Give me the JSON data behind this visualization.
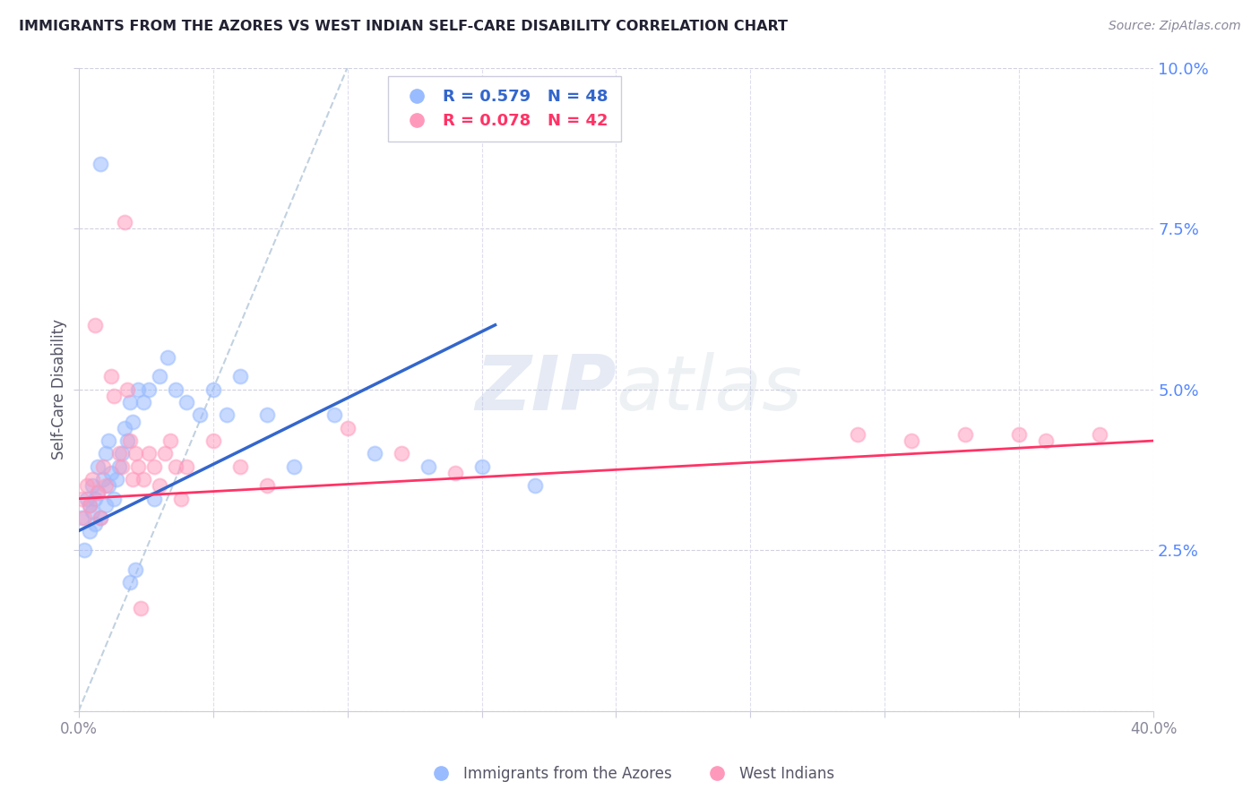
{
  "title": "IMMIGRANTS FROM THE AZORES VS WEST INDIAN SELF-CARE DISABILITY CORRELATION CHART",
  "source": "Source: ZipAtlas.com",
  "ylabel": "Self-Care Disability",
  "legend_label_1": "Immigrants from the Azores",
  "legend_label_2": "West Indians",
  "R1": 0.579,
  "N1": 48,
  "R2": 0.078,
  "N2": 42,
  "xlim": [
    0.0,
    0.4
  ],
  "ylim": [
    0.0,
    0.1
  ],
  "xticks": [
    0.0,
    0.05,
    0.1,
    0.15,
    0.2,
    0.25,
    0.3,
    0.35,
    0.4
  ],
  "yticks": [
    0.0,
    0.025,
    0.05,
    0.075,
    0.1
  ],
  "color_blue": "#99BBFF",
  "color_pink": "#FF99BB",
  "color_blue_line": "#3366CC",
  "color_pink_line": "#FF3366",
  "color_diag": "#BBCCDD",
  "watermark_zip": "ZIP",
  "watermark_atlas": "atlas",
  "blue_points_x": [
    0.001,
    0.002,
    0.003,
    0.004,
    0.004,
    0.005,
    0.005,
    0.006,
    0.006,
    0.007,
    0.007,
    0.008,
    0.009,
    0.01,
    0.01,
    0.011,
    0.011,
    0.012,
    0.013,
    0.014,
    0.015,
    0.016,
    0.017,
    0.018,
    0.019,
    0.02,
    0.022,
    0.024,
    0.026,
    0.03,
    0.033,
    0.036,
    0.04,
    0.045,
    0.05,
    0.055,
    0.06,
    0.07,
    0.08,
    0.095,
    0.11,
    0.13,
    0.15,
    0.17,
    0.019,
    0.021,
    0.028,
    0.008
  ],
  "blue_points_y": [
    0.03,
    0.025,
    0.033,
    0.028,
    0.032,
    0.031,
    0.035,
    0.033,
    0.029,
    0.034,
    0.038,
    0.03,
    0.036,
    0.032,
    0.04,
    0.035,
    0.042,
    0.037,
    0.033,
    0.036,
    0.038,
    0.04,
    0.044,
    0.042,
    0.048,
    0.045,
    0.05,
    0.048,
    0.05,
    0.052,
    0.055,
    0.05,
    0.048,
    0.046,
    0.05,
    0.046,
    0.052,
    0.046,
    0.038,
    0.046,
    0.04,
    0.038,
    0.038,
    0.035,
    0.02,
    0.022,
    0.033,
    0.085
  ],
  "pink_points_x": [
    0.001,
    0.002,
    0.003,
    0.004,
    0.005,
    0.006,
    0.007,
    0.008,
    0.009,
    0.01,
    0.012,
    0.013,
    0.015,
    0.016,
    0.018,
    0.019,
    0.02,
    0.021,
    0.022,
    0.024,
    0.026,
    0.028,
    0.03,
    0.032,
    0.034,
    0.036,
    0.038,
    0.04,
    0.05,
    0.06,
    0.07,
    0.1,
    0.12,
    0.14,
    0.29,
    0.31,
    0.33,
    0.35,
    0.36,
    0.38,
    0.017,
    0.023
  ],
  "pink_points_y": [
    0.033,
    0.03,
    0.035,
    0.032,
    0.036,
    0.06,
    0.034,
    0.03,
    0.038,
    0.035,
    0.052,
    0.049,
    0.04,
    0.038,
    0.05,
    0.042,
    0.036,
    0.04,
    0.038,
    0.036,
    0.04,
    0.038,
    0.035,
    0.04,
    0.042,
    0.038,
    0.033,
    0.038,
    0.042,
    0.038,
    0.035,
    0.044,
    0.04,
    0.037,
    0.043,
    0.042,
    0.043,
    0.043,
    0.042,
    0.043,
    0.076,
    0.016
  ],
  "blue_line_x": [
    0.0,
    0.155
  ],
  "blue_line_y": [
    0.028,
    0.06
  ],
  "pink_line_x": [
    0.0,
    0.4
  ],
  "pink_line_y": [
    0.033,
    0.042
  ],
  "diag_line_x": [
    0.0,
    0.1
  ],
  "diag_line_y": [
    0.0,
    0.1
  ]
}
